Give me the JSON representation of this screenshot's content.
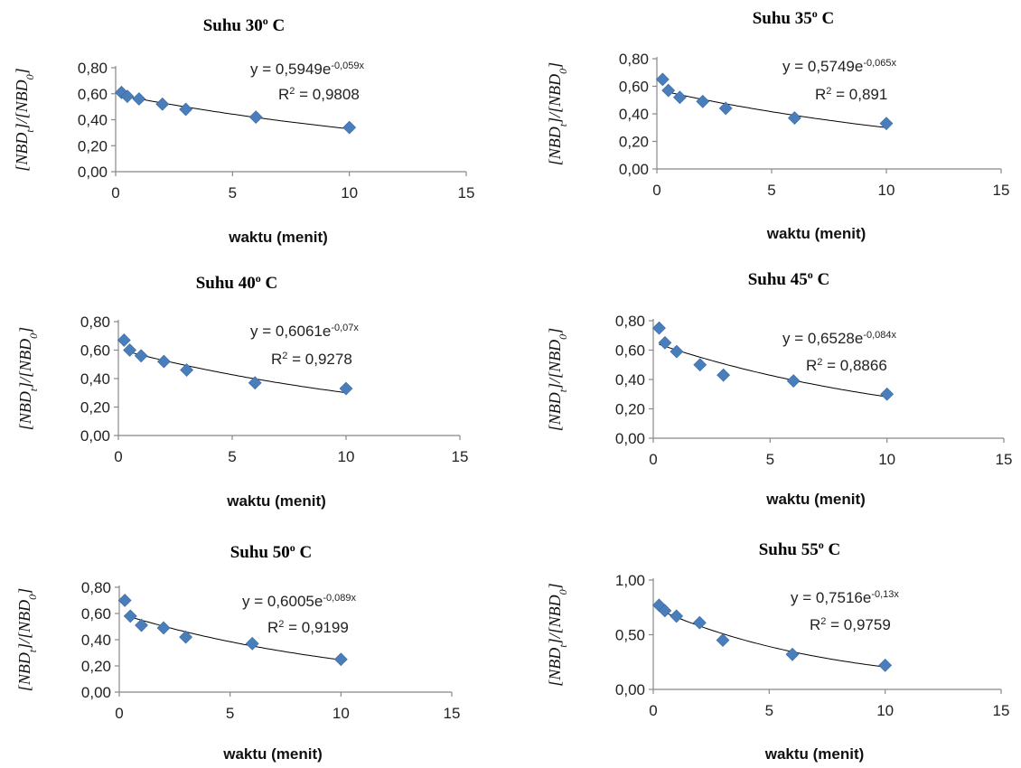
{
  "chart_data": [
    {
      "type": "scatter",
      "title": "Suhu 30",
      "title_sup": "o",
      "title_suffix": " C",
      "xlabel": "waktu (menit)",
      "ylabel_parts": [
        "[NBD",
        "t",
        "]/[NBD",
        "0",
        "]"
      ],
      "xlim": [
        0,
        15
      ],
      "xticks": [
        0,
        5,
        10,
        15
      ],
      "ylim": [
        0,
        0.8
      ],
      "yticks": [
        "0,00",
        "0,20",
        "0,40",
        "0,60",
        "0,80"
      ],
      "x": [
        0.25,
        0.5,
        1,
        2,
        3,
        6,
        10
      ],
      "y": [
        0.61,
        0.58,
        0.56,
        0.52,
        0.48,
        0.42,
        0.34
      ],
      "trend": {
        "a": 0.5949,
        "b": -0.059
      },
      "equation_main": "y = 0,5949e",
      "equation_exp": "-0,059x",
      "r2_label": "R",
      "r2_sup": "2",
      "r2_value": " = 0,9808",
      "marker_color": "#4a7ebb"
    },
    {
      "type": "scatter",
      "title": "Suhu 35",
      "title_sup": "o",
      "title_suffix": " C",
      "xlabel": "waktu (menit)",
      "ylabel_parts": [
        "[NBD",
        "t",
        "]/[NBD",
        "0",
        "]"
      ],
      "xlim": [
        0,
        15
      ],
      "xticks": [
        0,
        5,
        10,
        15
      ],
      "ylim": [
        0,
        0.8
      ],
      "yticks": [
        "0,00",
        "0,20",
        "0,40",
        "0,60",
        "0,80"
      ],
      "x": [
        0.25,
        0.5,
        1,
        2,
        3,
        6,
        10
      ],
      "y": [
        0.65,
        0.57,
        0.52,
        0.49,
        0.44,
        0.37,
        0.33
      ],
      "trend": {
        "a": 0.5749,
        "b": -0.065
      },
      "equation_main": "y = 0,5749e",
      "equation_exp": "-0,065x",
      "r2_label": "R",
      "r2_sup": "2",
      "r2_value": " = 0,891",
      "marker_color": "#4a7ebb"
    },
    {
      "type": "scatter",
      "title": "Suhu 40",
      "title_sup": "o",
      "title_suffix": " C",
      "xlabel": "waktu (menit)",
      "ylabel_parts": [
        "[NBD",
        "t",
        "]/[NBD",
        "0",
        "]"
      ],
      "xlim": [
        0,
        15
      ],
      "xticks": [
        0,
        5,
        10,
        15
      ],
      "ylim": [
        0,
        0.8
      ],
      "yticks": [
        "0,00",
        "0,20",
        "0,40",
        "0,60",
        "0,80"
      ],
      "x": [
        0.25,
        0.5,
        1,
        2,
        3,
        6,
        10
      ],
      "y": [
        0.67,
        0.6,
        0.56,
        0.52,
        0.46,
        0.37,
        0.33
      ],
      "trend": {
        "a": 0.6061,
        "b": -0.07
      },
      "equation_main": "y = 0,6061e",
      "equation_exp": "-0,07x",
      "r2_label": "R",
      "r2_sup": "2",
      "r2_value": " = 0,9278",
      "marker_color": "#4a7ebb"
    },
    {
      "type": "scatter",
      "title": "Suhu 45",
      "title_sup": "o",
      "title_suffix": " C",
      "xlabel": "waktu (menit)",
      "ylabel_parts": [
        "[NBD",
        "t",
        "]/[NBD",
        "0",
        "]"
      ],
      "xlim": [
        0,
        15
      ],
      "xticks": [
        0,
        5,
        10,
        15
      ],
      "ylim": [
        0,
        0.8
      ],
      "yticks": [
        "0,00",
        "0,20",
        "0,40",
        "0,60",
        "0,80"
      ],
      "x": [
        0.25,
        0.5,
        1,
        2,
        3,
        6,
        10
      ],
      "y": [
        0.75,
        0.65,
        0.59,
        0.5,
        0.43,
        0.39,
        0.3
      ],
      "trend": {
        "a": 0.6528,
        "b": -0.084
      },
      "equation_main": "y = 0,6528e",
      "equation_exp": "-0,084x",
      "r2_label": "R",
      "r2_sup": "2",
      "r2_value": " = 0,8866",
      "marker_color": "#4a7ebb"
    },
    {
      "type": "scatter",
      "title": "Suhu 50",
      "title_sup": "o",
      "title_suffix": " C",
      "xlabel": "waktu (menit)",
      "ylabel_parts": [
        "[NBD",
        "t",
        "]/[NBD",
        "0",
        "]"
      ],
      "xlim": [
        0,
        15
      ],
      "xticks": [
        0,
        5,
        10,
        15
      ],
      "ylim": [
        0,
        0.8
      ],
      "yticks": [
        "0,00",
        "0,20",
        "0,40",
        "0,60",
        "0,80"
      ],
      "x": [
        0.25,
        0.5,
        1,
        2,
        3,
        6,
        10
      ],
      "y": [
        0.7,
        0.58,
        0.51,
        0.49,
        0.42,
        0.37,
        0.25
      ],
      "trend": {
        "a": 0.6005,
        "b": -0.089
      },
      "equation_main": "y = 0,6005e",
      "equation_exp": "-0,089x",
      "r2_label": "R",
      "r2_sup": "2",
      "r2_value": " = 0,9199",
      "marker_color": "#4a7ebb"
    },
    {
      "type": "scatter",
      "title": "Suhu 55",
      "title_sup": "o",
      "title_suffix": " C",
      "xlabel": "waktu (menit)",
      "ylabel_parts": [
        "[NBD",
        "t",
        "]/[NBD",
        "0",
        "]"
      ],
      "xlim": [
        0,
        15
      ],
      "xticks": [
        0,
        5,
        10,
        15
      ],
      "ylim": [
        0,
        1
      ],
      "yticks": [
        "0,00",
        "0,50",
        "1,00"
      ],
      "x": [
        0.25,
        0.5,
        1,
        2,
        3,
        6,
        10
      ],
      "y": [
        0.77,
        0.72,
        0.67,
        0.61,
        0.45,
        0.32,
        0.22
      ],
      "trend": {
        "a": 0.7516,
        "b": -0.13
      },
      "equation_main": "y = 0,7516e",
      "equation_exp": "-0,13x",
      "r2_label": "R",
      "r2_sup": "2",
      "r2_value": " = 0,9759",
      "marker_color": "#4a7ebb"
    }
  ]
}
